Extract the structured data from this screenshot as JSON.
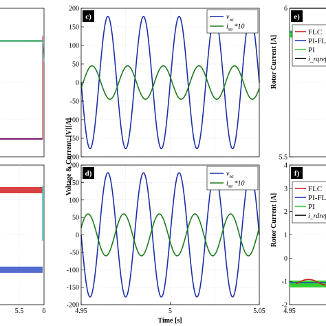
{
  "chart_data": [
    {
      "panel_label": "c)",
      "type": "line",
      "xlim": [
        4.95,
        5.05
      ],
      "ylim": [
        -200,
        200
      ],
      "yticks": [
        "-200",
        "-150",
        "-100",
        "-50",
        "0",
        "50",
        "100",
        "150",
        "200"
      ],
      "ylabel": "Voltage & Current, [V][A]",
      "grid": true,
      "legend_position": "top-right",
      "series": [
        {
          "name": "v_sa",
          "legend_base": "v",
          "legend_sub": "sa",
          "legend_suffix": "",
          "color": "#1c2fa8",
          "amplitude": 178,
          "frequency_hz": 50,
          "phase_deg": 0
        },
        {
          "name": "i_sa *10",
          "legend_base": "i",
          "legend_sub": "sa",
          "legend_suffix": " *10",
          "color": "#1d7a1d",
          "amplitude": 45,
          "frequency_hz": 50,
          "phase_deg": 160
        }
      ]
    },
    {
      "panel_label": "d)",
      "type": "line",
      "xlim": [
        4.95,
        5.05
      ],
      "ylim": [
        -200,
        200
      ],
      "xticks": [
        "4.95",
        "5",
        "5.05"
      ],
      "yticks": [
        "-200",
        "-150",
        "-100",
        "-50",
        "0",
        "50",
        "100",
        "150",
        "200"
      ],
      "xlabel": "Time [s]",
      "ylabel": "Voltage & Current, [V][A]",
      "grid": true,
      "legend_position": "top-right",
      "series": [
        {
          "name": "v_sa",
          "legend_base": "v",
          "legend_sub": "sa",
          "legend_suffix": "",
          "color": "#1c2fa8",
          "amplitude": 178,
          "frequency_hz": 50,
          "phase_deg": 0
        },
        {
          "name": "i_sa *10",
          "legend_base": "i",
          "legend_sub": "sa",
          "legend_suffix": " *10",
          "color": "#1d7a1d",
          "amplitude": 60,
          "frequency_hz": 50,
          "phase_deg": 200
        }
      ]
    },
    {
      "panel_label": "left-top",
      "type": "line",
      "xlim": [
        4.5,
        6
      ],
      "series": [
        {
          "color": "#2e9e5a",
          "values_before_step": 0.78,
          "values_after_step": 0.78
        },
        {
          "color": "#7a1f6b",
          "values_before_step": 0.12,
          "values_after_step": 0.12
        }
      ]
    },
    {
      "panel_label": "left-bottom",
      "type": "line",
      "xlim": [
        4.5,
        6
      ],
      "xticks": [
        "5.5",
        "6"
      ],
      "series": [
        {
          "color": "#d22020",
          "level": 0.82
        },
        {
          "color": "#1e3fbf",
          "level": 0.25
        }
      ]
    },
    {
      "panel_label": "e)",
      "type": "line",
      "ylim": [
        5.5,
        6.0
      ],
      "yticks": [
        "6",
        "5.5"
      ],
      "ylabel": "Rotor Current [A]",
      "legend": [
        {
          "name": "FLC",
          "color": "#d22020"
        },
        {
          "name": "PI-FLC",
          "color": "#1e3fbf"
        },
        {
          "name": "PI",
          "color": "#33d033"
        },
        {
          "name": "i_rqref",
          "color": "#000000"
        }
      ]
    },
    {
      "panel_label": "f)",
      "type": "line",
      "ylim": [
        -2,
        4
      ],
      "yticks": [
        "4",
        "3",
        "2",
        "1",
        "0",
        "-1",
        "-2"
      ],
      "xticks": [
        "4.95"
      ],
      "ylabel": "Rotor Current [A]",
      "legend": [
        {
          "name": "FLC",
          "color": "#d22020"
        },
        {
          "name": "PI-FLC",
          "color": "#1e3fbf"
        },
        {
          "name": "PI",
          "color": "#33d033"
        },
        {
          "name": "i_rdref",
          "color": "#000000"
        }
      ]
    }
  ]
}
